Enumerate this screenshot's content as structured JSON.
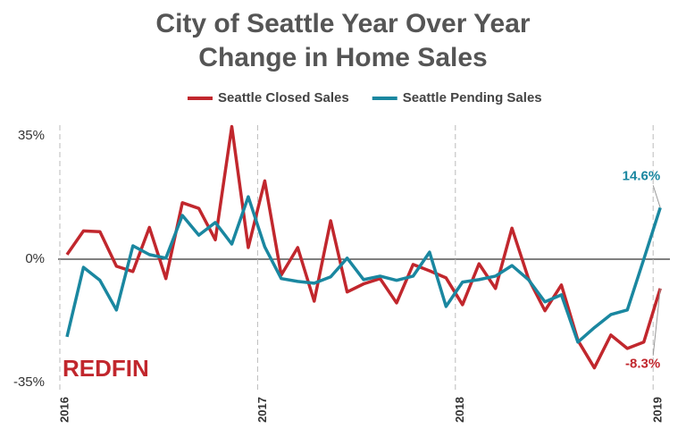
{
  "chart_data": {
    "type": "line",
    "title": "City of Seattle Year Over Year Change in Home Sales",
    "logo": "REDFIN",
    "categories": [
      "2016",
      null,
      null,
      null,
      null,
      null,
      null,
      null,
      null,
      null,
      null,
      null,
      "2017",
      null,
      null,
      null,
      null,
      null,
      null,
      null,
      null,
      null,
      null,
      null,
      "2018",
      null,
      null,
      null,
      null,
      null,
      null,
      null,
      null,
      null,
      null,
      null,
      "2019"
    ],
    "series": [
      {
        "name": "Seattle Closed Sales",
        "color": "#c1272d",
        "values": [
          1.3,
          8,
          7.8,
          -2,
          -3.5,
          9,
          -5.5,
          16,
          14.4,
          5.5,
          37.6,
          3.3,
          22.2,
          -4.5,
          3.3,
          -11.9,
          10.9,
          -9.3,
          -7,
          -5.5,
          -12.4,
          -1.5,
          -3.3,
          -5.3,
          -12.9,
          -1.3,
          -8.3,
          8.8,
          -5.5,
          -14.6,
          -7.3,
          -23,
          -30.8,
          -21.5,
          -25.3,
          -23.5,
          -8.3
        ],
        "value_labels": [
          null,
          null,
          null,
          null,
          null,
          null,
          null,
          null,
          null,
          null,
          null,
          null,
          null,
          null,
          null,
          null,
          null,
          null,
          null,
          null,
          null,
          null,
          null,
          null,
          null,
          null,
          null,
          null,
          null,
          null,
          null,
          null,
          null,
          null,
          null,
          null,
          "-8.3%"
        ]
      },
      {
        "name": "Seattle Pending Sales",
        "color": "#1a87a0",
        "values": [
          -22,
          -2.3,
          -6,
          -14.4,
          3.8,
          1.3,
          0.3,
          12.4,
          6.8,
          10.4,
          4.3,
          17.7,
          3.5,
          -5.5,
          -6.3,
          -6.8,
          -5,
          0.3,
          -5.8,
          -4.8,
          -6,
          -4.8,
          2,
          -13.4,
          -6.5,
          -5.8,
          -4.8,
          -1.8,
          -5.8,
          -12.1,
          -10.1,
          -23.5,
          -19.4,
          -15.7,
          -14.4,
          0,
          14.6
        ],
        "value_labels": [
          null,
          null,
          null,
          null,
          null,
          null,
          null,
          null,
          null,
          null,
          null,
          null,
          null,
          null,
          null,
          null,
          null,
          null,
          null,
          null,
          null,
          null,
          null,
          null,
          null,
          null,
          null,
          null,
          null,
          null,
          null,
          null,
          null,
          null,
          null,
          null,
          "14.6%"
        ]
      }
    ],
    "ylim": [
      -38,
      38
    ],
    "yticks": [
      {
        "value": 35,
        "label": "35%"
      },
      {
        "value": 0,
        "label": "0%"
      },
      {
        "value": -35,
        "label": "-35%"
      }
    ],
    "grid": true
  }
}
